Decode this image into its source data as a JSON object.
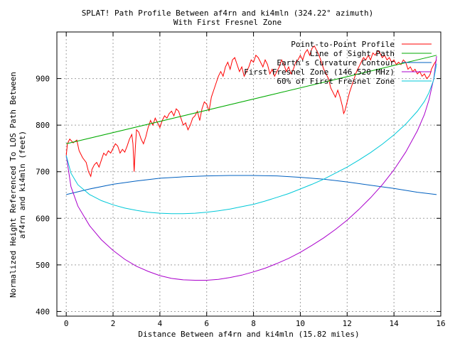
{
  "chart_data": {
    "type": "line",
    "title_line1": "SPLAT! Path Profile Between af4rn and ki4mln (324.22° azimuth)",
    "title_line2": "With First Fresnel Zone",
    "xlabel": "Distance Between af4rn and ki4mln (15.82 miles)",
    "ylabel_line1": "Normalized Height Referenced To LOS Path Between",
    "ylabel_line2": "af4rn and ki4mln (feet)",
    "xlim": [
      -0.4,
      16
    ],
    "ylim": [
      390,
      1000
    ],
    "x_ticks": [
      0,
      2,
      4,
      6,
      8,
      10,
      12,
      14,
      16
    ],
    "y_ticks": [
      400,
      500,
      600,
      700,
      800,
      900
    ],
    "grid": true,
    "legend_position": "top-right",
    "series": [
      {
        "name": "Point-to-Point Profile",
        "color": "#ff0000",
        "points": [
          [
            0,
            735
          ],
          [
            0.05,
            760
          ],
          [
            0.15,
            770
          ],
          [
            0.3,
            762
          ],
          [
            0.45,
            768
          ],
          [
            0.55,
            745
          ],
          [
            0.7,
            730
          ],
          [
            0.85,
            720
          ],
          [
            0.95,
            700
          ],
          [
            1.05,
            690
          ],
          [
            1.1,
            705
          ],
          [
            1.2,
            715
          ],
          [
            1.3,
            720
          ],
          [
            1.4,
            710
          ],
          [
            1.5,
            725
          ],
          [
            1.6,
            740
          ],
          [
            1.7,
            735
          ],
          [
            1.8,
            745
          ],
          [
            1.9,
            740
          ],
          [
            2.0,
            750
          ],
          [
            2.1,
            760
          ],
          [
            2.2,
            755
          ],
          [
            2.3,
            740
          ],
          [
            2.4,
            748
          ],
          [
            2.5,
            742
          ],
          [
            2.6,
            755
          ],
          [
            2.7,
            770
          ],
          [
            2.8,
            780
          ],
          [
            2.85,
            760
          ],
          [
            2.9,
            700
          ],
          [
            2.95,
            750
          ],
          [
            3.0,
            790
          ],
          [
            3.1,
            785
          ],
          [
            3.2,
            770
          ],
          [
            3.3,
            760
          ],
          [
            3.4,
            775
          ],
          [
            3.5,
            795
          ],
          [
            3.6,
            810
          ],
          [
            3.7,
            800
          ],
          [
            3.8,
            815
          ],
          [
            3.9,
            805
          ],
          [
            4.0,
            795
          ],
          [
            4.1,
            810
          ],
          [
            4.2,
            820
          ],
          [
            4.3,
            815
          ],
          [
            4.4,
            825
          ],
          [
            4.5,
            830
          ],
          [
            4.6,
            820
          ],
          [
            4.7,
            835
          ],
          [
            4.8,
            830
          ],
          [
            4.9,
            815
          ],
          [
            5.0,
            800
          ],
          [
            5.1,
            805
          ],
          [
            5.2,
            790
          ],
          [
            5.3,
            800
          ],
          [
            5.4,
            815
          ],
          [
            5.5,
            820
          ],
          [
            5.6,
            830
          ],
          [
            5.7,
            810
          ],
          [
            5.8,
            835
          ],
          [
            5.9,
            850
          ],
          [
            6.0,
            845
          ],
          [
            6.1,
            830
          ],
          [
            6.2,
            860
          ],
          [
            6.3,
            875
          ],
          [
            6.4,
            890
          ],
          [
            6.5,
            905
          ],
          [
            6.6,
            915
          ],
          [
            6.7,
            905
          ],
          [
            6.8,
            925
          ],
          [
            6.9,
            935
          ],
          [
            7.0,
            920
          ],
          [
            7.1,
            940
          ],
          [
            7.2,
            945
          ],
          [
            7.3,
            930
          ],
          [
            7.4,
            915
          ],
          [
            7.5,
            925
          ],
          [
            7.6,
            905
          ],
          [
            7.7,
            915
          ],
          [
            7.8,
            925
          ],
          [
            7.9,
            940
          ],
          [
            8.0,
            935
          ],
          [
            8.1,
            950
          ],
          [
            8.2,
            945
          ],
          [
            8.3,
            935
          ],
          [
            8.4,
            925
          ],
          [
            8.5,
            940
          ],
          [
            8.6,
            930
          ],
          [
            8.7,
            910
          ],
          [
            8.8,
            920
          ],
          [
            8.9,
            905
          ],
          [
            9.0,
            915
          ],
          [
            9.1,
            925
          ],
          [
            9.2,
            940
          ],
          [
            9.3,
            930
          ],
          [
            9.4,
            915
          ],
          [
            9.5,
            925
          ],
          [
            9.6,
            910
          ],
          [
            9.7,
            920
          ],
          [
            9.8,
            935
          ],
          [
            9.9,
            940
          ],
          [
            10.0,
            950
          ],
          [
            10.1,
            940
          ],
          [
            10.2,
            955
          ],
          [
            10.3,
            962
          ],
          [
            10.4,
            950
          ],
          [
            10.5,
            965
          ],
          [
            10.6,
            970
          ],
          [
            10.7,
            960
          ],
          [
            10.8,
            950
          ],
          [
            10.9,
            935
          ],
          [
            11.0,
            920
          ],
          [
            11.1,
            910
          ],
          [
            11.2,
            900
          ],
          [
            11.3,
            880
          ],
          [
            11.4,
            870
          ],
          [
            11.5,
            860
          ],
          [
            11.6,
            875
          ],
          [
            11.7,
            860
          ],
          [
            11.8,
            840
          ],
          [
            11.85,
            825
          ],
          [
            11.9,
            830
          ],
          [
            12.0,
            850
          ],
          [
            12.1,
            870
          ],
          [
            12.2,
            885
          ],
          [
            12.3,
            900
          ],
          [
            12.4,
            915
          ],
          [
            12.5,
            925
          ],
          [
            12.6,
            935
          ],
          [
            12.7,
            945
          ],
          [
            12.8,
            940
          ],
          [
            12.9,
            950
          ],
          [
            13.0,
            940
          ],
          [
            13.1,
            955
          ],
          [
            13.2,
            950
          ],
          [
            13.3,
            960
          ],
          [
            13.4,
            955
          ],
          [
            13.5,
            945
          ],
          [
            13.6,
            950
          ],
          [
            13.7,
            940
          ],
          [
            13.8,
            945
          ],
          [
            13.9,
            935
          ],
          [
            14.0,
            940
          ],
          [
            14.1,
            930
          ],
          [
            14.2,
            935
          ],
          [
            14.3,
            930
          ],
          [
            14.4,
            940
          ],
          [
            14.5,
            935
          ],
          [
            14.6,
            920
          ],
          [
            14.7,
            925
          ],
          [
            14.8,
            915
          ],
          [
            14.9,
            920
          ],
          [
            15.0,
            910
          ],
          [
            15.1,
            915
          ],
          [
            15.2,
            905
          ],
          [
            15.3,
            910
          ],
          [
            15.4,
            900
          ],
          [
            15.5,
            905
          ],
          [
            15.55,
            910
          ],
          [
            15.6,
            920
          ],
          [
            15.7,
            930
          ],
          [
            15.82,
            940
          ]
        ]
      },
      {
        "name": "Line of Sight Path",
        "color": "#00aa00",
        "points": [
          [
            0,
            760
          ],
          [
            15.82,
            950
          ]
        ]
      },
      {
        "name": "Earth's Curvature Contour",
        "color": "#0060c0",
        "points": [
          [
            0,
            651
          ],
          [
            1,
            663
          ],
          [
            2,
            673
          ],
          [
            3,
            680
          ],
          [
            4,
            686
          ],
          [
            5,
            689
          ],
          [
            6,
            691
          ],
          [
            7,
            692
          ],
          [
            7.9,
            692
          ],
          [
            9,
            691
          ],
          [
            10,
            688
          ],
          [
            11,
            684
          ],
          [
            12,
            678
          ],
          [
            13,
            671
          ],
          [
            14,
            664
          ],
          [
            15,
            656
          ],
          [
            15.82,
            651
          ]
        ]
      },
      {
        "name": "First Fresnel Zone (146.520 MHz)",
        "color": "#aa00cc",
        "points": [
          [
            0,
            735
          ],
          [
            0.2,
            668
          ],
          [
            0.5,
            626
          ],
          [
            1,
            584
          ],
          [
            1.5,
            554
          ],
          [
            2,
            531
          ],
          [
            2.5,
            512
          ],
          [
            3,
            497
          ],
          [
            3.5,
            486
          ],
          [
            4,
            477
          ],
          [
            4.5,
            471
          ],
          [
            5,
            468
          ],
          [
            5.5,
            467
          ],
          [
            6,
            467
          ],
          [
            6.5,
            469
          ],
          [
            7,
            473
          ],
          [
            7.5,
            478
          ],
          [
            8,
            485
          ],
          [
            8.5,
            493
          ],
          [
            9,
            503
          ],
          [
            9.5,
            514
          ],
          [
            10,
            527
          ],
          [
            10.5,
            542
          ],
          [
            11,
            558
          ],
          [
            11.5,
            576
          ],
          [
            12,
            596
          ],
          [
            12.5,
            619
          ],
          [
            13,
            644
          ],
          [
            13.5,
            672
          ],
          [
            14,
            704
          ],
          [
            14.5,
            742
          ],
          [
            15,
            788
          ],
          [
            15.3,
            823
          ],
          [
            15.5,
            855
          ],
          [
            15.7,
            900
          ],
          [
            15.82,
            948
          ]
        ]
      },
      {
        "name": "60% of First Fresnel Zone",
        "color": "#00c8d8",
        "points": [
          [
            0,
            735
          ],
          [
            0.2,
            697
          ],
          [
            0.5,
            672
          ],
          [
            1,
            651
          ],
          [
            1.5,
            638
          ],
          [
            2,
            629
          ],
          [
            2.5,
            622
          ],
          [
            3,
            617
          ],
          [
            3.5,
            613
          ],
          [
            4,
            611
          ],
          [
            4.5,
            610
          ],
          [
            5,
            610
          ],
          [
            5.5,
            611
          ],
          [
            6,
            613
          ],
          [
            6.5,
            616
          ],
          [
            7,
            620
          ],
          [
            7.5,
            625
          ],
          [
            8,
            630
          ],
          [
            8.5,
            637
          ],
          [
            9,
            645
          ],
          [
            9.5,
            653
          ],
          [
            10,
            663
          ],
          [
            10.5,
            673
          ],
          [
            11,
            684
          ],
          [
            11.5,
            697
          ],
          [
            12,
            710
          ],
          [
            12.5,
            725
          ],
          [
            13,
            741
          ],
          [
            13.5,
            759
          ],
          [
            14,
            779
          ],
          [
            14.5,
            802
          ],
          [
            15,
            830
          ],
          [
            15.3,
            851
          ],
          [
            15.5,
            870
          ],
          [
            15.7,
            898
          ],
          [
            15.82,
            932
          ]
        ]
      }
    ]
  }
}
